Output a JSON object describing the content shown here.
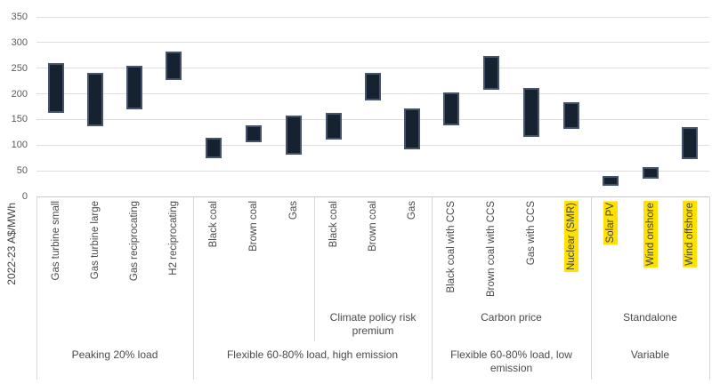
{
  "chart_data": {
    "type": "bar",
    "subtype": "floating-range-bar",
    "ylabel": "2022-23 A$/MWh",
    "ylim": [
      0,
      350
    ],
    "yticks": [
      0,
      50,
      100,
      150,
      200,
      250,
      300,
      350
    ],
    "grid": "horizontal",
    "legend": "none",
    "colors": {
      "bar_fill": "#16222F",
      "bar_border": "#44546A",
      "highlight": "#FFE100",
      "gridline": "#DDDDDD",
      "text": "#4A4A4A"
    },
    "groups": [
      {
        "label": "Peaking 20% load",
        "subgroups": [
          {
            "label": "",
            "bars": [
              {
                "label": "Gas turbine small",
                "low": 163,
                "high": 260,
                "highlight": false
              },
              {
                "label": "Gas turbine large",
                "low": 137,
                "high": 241,
                "highlight": false
              },
              {
                "label": "Gas reciprocating",
                "low": 169,
                "high": 255,
                "highlight": false
              },
              {
                "label": "H2 reciprocating",
                "low": 227,
                "high": 282,
                "highlight": false
              }
            ]
          }
        ]
      },
      {
        "label": "Flexible 60-80% load, high emission",
        "subgroups": [
          {
            "label": "",
            "bars": [
              {
                "label": "Black coal",
                "low": 74,
                "high": 114,
                "highlight": false
              },
              {
                "label": "Brown coal",
                "low": 106,
                "high": 138,
                "highlight": false
              },
              {
                "label": "Gas",
                "low": 81,
                "high": 157,
                "highlight": false
              }
            ]
          },
          {
            "label": "Climate policy risk premium",
            "bars": [
              {
                "label": "Black coal",
                "low": 111,
                "high": 163,
                "highlight": false
              },
              {
                "label": "Brown coal",
                "low": 187,
                "high": 241,
                "highlight": false
              },
              {
                "label": "Gas",
                "low": 92,
                "high": 172,
                "highlight": false
              }
            ]
          }
        ]
      },
      {
        "label": "Flexible 60-80% load, low emission",
        "subgroups": [
          {
            "label": "Carbon price",
            "bars": [
              {
                "label": "Black coal with CCS",
                "low": 138,
                "high": 202,
                "highlight": false
              },
              {
                "label": "Brown coal with CCS",
                "low": 208,
                "high": 274,
                "highlight": false
              },
              {
                "label": "Gas with CCS",
                "low": 116,
                "high": 212,
                "highlight": false
              },
              {
                "label": "Nuclear (SMR)",
                "low": 131,
                "high": 184,
                "highlight": true
              }
            ]
          }
        ]
      },
      {
        "label": "Variable",
        "subgroups": [
          {
            "label": "Standalone",
            "bars": [
              {
                "label": "Solar PV",
                "low": 21,
                "high": 40,
                "highlight": true
              },
              {
                "label": "Wind onshore",
                "low": 35,
                "high": 58,
                "highlight": true
              },
              {
                "label": "Wind offshore",
                "low": 73,
                "high": 135,
                "highlight": true
              }
            ]
          }
        ]
      }
    ]
  }
}
